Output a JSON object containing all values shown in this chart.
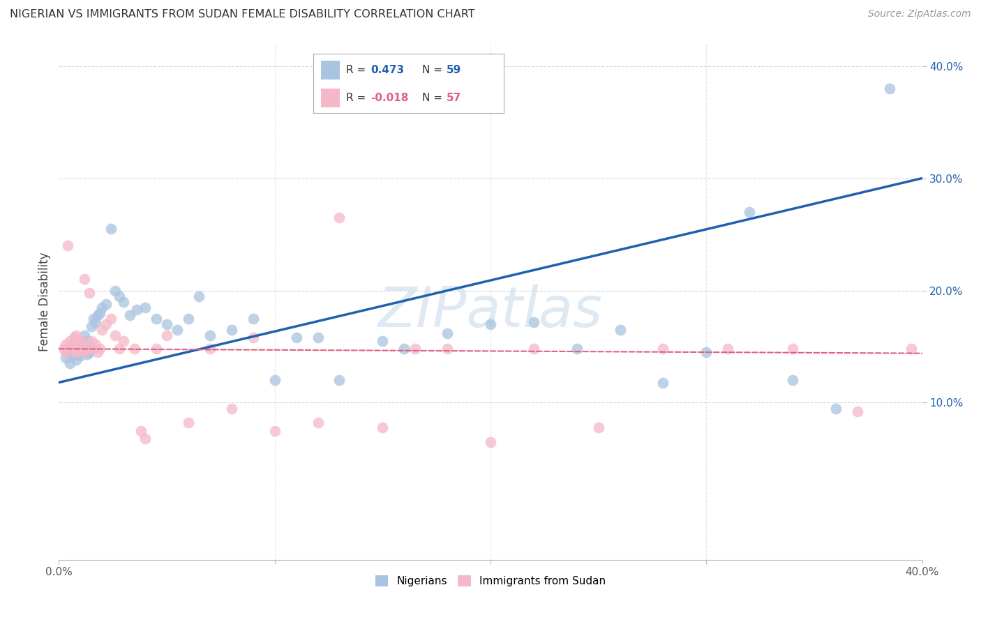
{
  "title": "NIGERIAN VS IMMIGRANTS FROM SUDAN FEMALE DISABILITY CORRELATION CHART",
  "source": "Source: ZipAtlas.com",
  "ylabel": "Female Disability",
  "xlim": [
    0.0,
    0.4
  ],
  "ylim": [
    -0.04,
    0.42
  ],
  "blue_R": 0.473,
  "blue_N": 59,
  "pink_R": -0.018,
  "pink_N": 57,
  "blue_color": "#a8c4e0",
  "pink_color": "#f5b8c8",
  "blue_line_color": "#2060b0",
  "pink_line_color": "#e06080",
  "watermark": "ZIPatlas",
  "background_color": "#ffffff",
  "grid_color": "#cccccc",
  "blue_scatter_x": [
    0.003,
    0.004,
    0.005,
    0.006,
    0.007,
    0.007,
    0.008,
    0.008,
    0.009,
    0.009,
    0.01,
    0.01,
    0.011,
    0.011,
    0.012,
    0.012,
    0.013,
    0.013,
    0.014,
    0.014,
    0.015,
    0.016,
    0.017,
    0.018,
    0.019,
    0.02,
    0.022,
    0.024,
    0.026,
    0.028,
    0.03,
    0.033,
    0.036,
    0.04,
    0.045,
    0.05,
    0.055,
    0.06,
    0.065,
    0.07,
    0.08,
    0.09,
    0.1,
    0.11,
    0.12,
    0.13,
    0.15,
    0.16,
    0.18,
    0.2,
    0.22,
    0.24,
    0.26,
    0.28,
    0.3,
    0.32,
    0.34,
    0.36,
    0.385
  ],
  "blue_scatter_y": [
    0.14,
    0.145,
    0.135,
    0.148,
    0.15,
    0.143,
    0.138,
    0.152,
    0.145,
    0.147,
    0.148,
    0.142,
    0.155,
    0.15,
    0.148,
    0.16,
    0.155,
    0.143,
    0.15,
    0.145,
    0.168,
    0.175,
    0.172,
    0.178,
    0.18,
    0.185,
    0.188,
    0.255,
    0.2,
    0.195,
    0.19,
    0.178,
    0.183,
    0.185,
    0.175,
    0.17,
    0.165,
    0.175,
    0.195,
    0.16,
    0.165,
    0.175,
    0.12,
    0.158,
    0.158,
    0.12,
    0.155,
    0.148,
    0.162,
    0.17,
    0.172,
    0.148,
    0.165,
    0.118,
    0.145,
    0.27,
    0.12,
    0.095,
    0.38
  ],
  "pink_scatter_x": [
    0.002,
    0.003,
    0.003,
    0.004,
    0.004,
    0.005,
    0.005,
    0.006,
    0.006,
    0.007,
    0.007,
    0.008,
    0.008,
    0.009,
    0.009,
    0.01,
    0.01,
    0.011,
    0.011,
    0.012,
    0.012,
    0.013,
    0.014,
    0.015,
    0.016,
    0.017,
    0.018,
    0.019,
    0.02,
    0.022,
    0.024,
    0.026,
    0.028,
    0.03,
    0.035,
    0.038,
    0.04,
    0.045,
    0.05,
    0.06,
    0.07,
    0.08,
    0.09,
    0.1,
    0.12,
    0.13,
    0.15,
    0.165,
    0.18,
    0.2,
    0.22,
    0.25,
    0.28,
    0.31,
    0.34,
    0.37,
    0.395
  ],
  "pink_scatter_y": [
    0.148,
    0.145,
    0.152,
    0.24,
    0.148,
    0.155,
    0.148,
    0.152,
    0.148,
    0.158,
    0.148,
    0.145,
    0.16,
    0.148,
    0.155,
    0.148,
    0.152,
    0.148,
    0.155,
    0.21,
    0.145,
    0.148,
    0.198,
    0.155,
    0.148,
    0.152,
    0.145,
    0.148,
    0.165,
    0.17,
    0.175,
    0.16,
    0.148,
    0.155,
    0.148,
    0.075,
    0.068,
    0.148,
    0.16,
    0.082,
    0.148,
    0.095,
    0.158,
    0.075,
    0.082,
    0.265,
    0.078,
    0.148,
    0.148,
    0.065,
    0.148,
    0.078,
    0.148,
    0.148,
    0.148,
    0.092,
    0.148
  ]
}
